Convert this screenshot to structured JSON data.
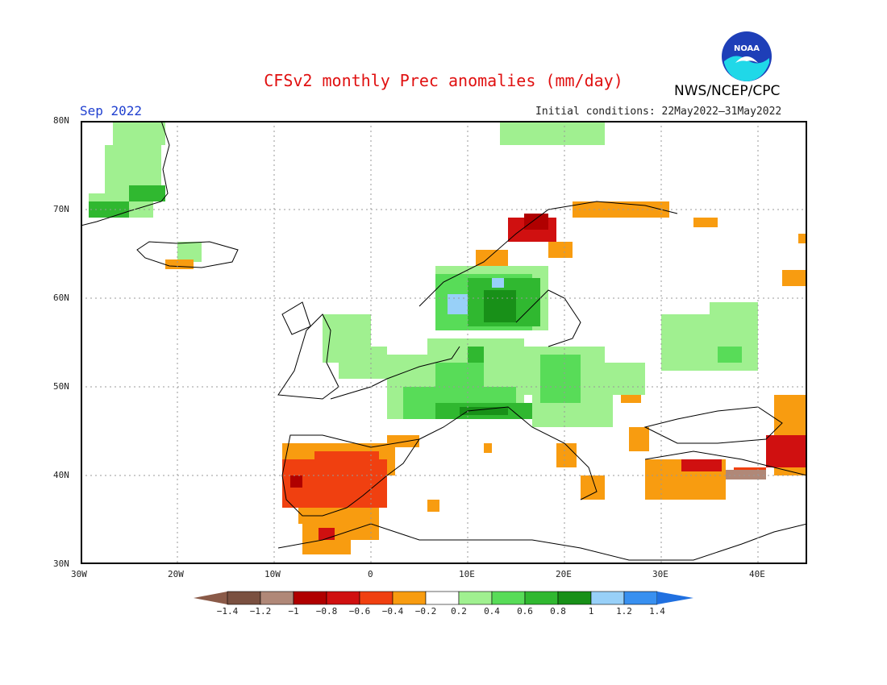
{
  "header": {
    "title": "CFSv2 monthly Prec anomalies (mm/day)",
    "organization": "NWS/NCEP/CPC",
    "period": "Sep 2022",
    "initial_conditions": "Initial conditions: 22May2022–31May2022",
    "logo_text": "NOAA"
  },
  "map": {
    "lat_labels": [
      "80N",
      "70N",
      "60N",
      "50N",
      "40N",
      "30N"
    ],
    "lon_labels": [
      "30W",
      "20W",
      "10W",
      "0",
      "10E",
      "20E",
      "30E",
      "40E"
    ]
  },
  "colorbar": {
    "labels": [
      "−1.4",
      "−1.2",
      "−1",
      "−0.8",
      "−0.6",
      "−0.4",
      "−0.2",
      "0.2",
      "0.4",
      "0.6",
      "0.8",
      "1",
      "1.2",
      "1.4"
    ],
    "colors": [
      "#7a5040",
      "#b08878",
      "#b00000",
      "#d01010",
      "#f04010",
      "#f89c10",
      "#ffffff",
      "#a0f090",
      "#58dc58",
      "#30b830",
      "#189018",
      "#98d0f8",
      "#3890f0"
    ],
    "arrow_left": "#8a5a48",
    "arrow_right": "#2070e0"
  }
}
